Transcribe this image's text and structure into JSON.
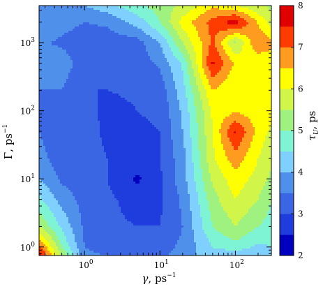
{
  "chart_data": {
    "type": "heatmap",
    "title": "",
    "x_axis": {
      "symbol": "γ",
      "unit": ", ps",
      "unit_exp": "−1",
      "scale": "log",
      "ticks": [
        1,
        10,
        100
      ],
      "tick_labels": [
        {
          "base": "10",
          "exp": "0"
        },
        {
          "base": "10",
          "exp": "1"
        },
        {
          "base": "10",
          "exp": "2"
        }
      ],
      "range": [
        0.25,
        300
      ]
    },
    "y_axis": {
      "symbol": "Γ",
      "unit": ", ps",
      "unit_exp": "−1",
      "scale": "log",
      "ticks": [
        1,
        10,
        100,
        1000
      ],
      "tick_labels": [
        {
          "base": "10",
          "exp": "0"
        },
        {
          "base": "10",
          "exp": "1"
        },
        {
          "base": "10",
          "exp": "2"
        },
        {
          "base": "10",
          "exp": "3"
        }
      ],
      "range": [
        0.75,
        3500
      ]
    },
    "colorbar": {
      "symbol": "τ",
      "subscript": "U",
      "unit": ", ps",
      "ticks": [
        2,
        3,
        4,
        5,
        6,
        7,
        8
      ],
      "tick_labels": [
        "2",
        "3",
        "4",
        "5",
        "6",
        "7",
        "8"
      ],
      "range": [
        2,
        8
      ],
      "levels": [
        2,
        2.5,
        3,
        3.5,
        4,
        4.5,
        5,
        5.5,
        6,
        6.5,
        7,
        7.5,
        8
      ],
      "colors": [
        "#0000bf",
        "#1e3ddc",
        "#3a66e4",
        "#4f90ea",
        "#7fd0ff",
        "#7ff4d4",
        "#9ff27f",
        "#d2f54a",
        "#ffff00",
        "#ff9b1e",
        "#ff3c00",
        "#e00000",
        "#7a0000"
      ]
    },
    "grid_x": [
      0.25,
      0.5,
      1,
      2,
      5,
      10,
      20,
      50,
      100,
      200,
      300
    ],
    "grid_y": [
      0.75,
      1,
      2,
      5,
      10,
      20,
      50,
      100,
      200,
      500,
      1000,
      2000,
      3500
    ],
    "z": [
      [
        7.8,
        5.5,
        3.6,
        3.5,
        3.4,
        3.3,
        3.8,
        4.3,
        4.0,
        4.3,
        4.5
      ],
      [
        7.2,
        5.0,
        3.5,
        3.3,
        3.3,
        3.3,
        3.6,
        4.5,
        4.8,
        4.4,
        4.5
      ],
      [
        5.5,
        4.4,
        3.4,
        3.1,
        3.0,
        3.0,
        3.5,
        5.0,
        5.5,
        5.0,
        4.8
      ],
      [
        4.6,
        3.8,
        3.3,
        3.1,
        2.8,
        2.9,
        3.6,
        5.3,
        6.0,
        5.5,
        5.0
      ],
      [
        4.0,
        3.4,
        3.2,
        3.0,
        2.4,
        2.9,
        3.8,
        5.6,
        6.3,
        5.8,
        5.4
      ],
      [
        3.7,
        3.2,
        3.2,
        3.0,
        2.8,
        3.0,
        3.8,
        5.9,
        6.8,
        6.0,
        5.6
      ],
      [
        3.5,
        3.1,
        3.2,
        2.9,
        2.9,
        3.0,
        4.0,
        6.0,
        7.6,
        6.3,
        5.9
      ],
      [
        3.5,
        3.2,
        3.3,
        2.8,
        3.0,
        3.1,
        4.1,
        6.1,
        6.4,
        6.2,
        6.2
      ],
      [
        3.5,
        3.5,
        3.0,
        3.0,
        3.1,
        3.2,
        4.3,
        6.5,
        6.0,
        6.2,
        6.0
      ],
      [
        3.6,
        3.8,
        3.2,
        3.1,
        3.2,
        3.6,
        4.6,
        7.6,
        6.4,
        6.0,
        6.3
      ],
      [
        3.6,
        3.4,
        3.2,
        3.2,
        3.3,
        4.0,
        5.5,
        7.1,
        5.4,
        7.0,
        6.6
      ],
      [
        4.0,
        3.7,
        3.5,
        3.6,
        4.2,
        5.0,
        6.2,
        7.2,
        7.8,
        6.4,
        5.8
      ],
      [
        4.0,
        4.0,
        4.0,
        4.3,
        4.9,
        5.2,
        5.6,
        6.4,
        6.0,
        5.6,
        5.4
      ]
    ]
  }
}
